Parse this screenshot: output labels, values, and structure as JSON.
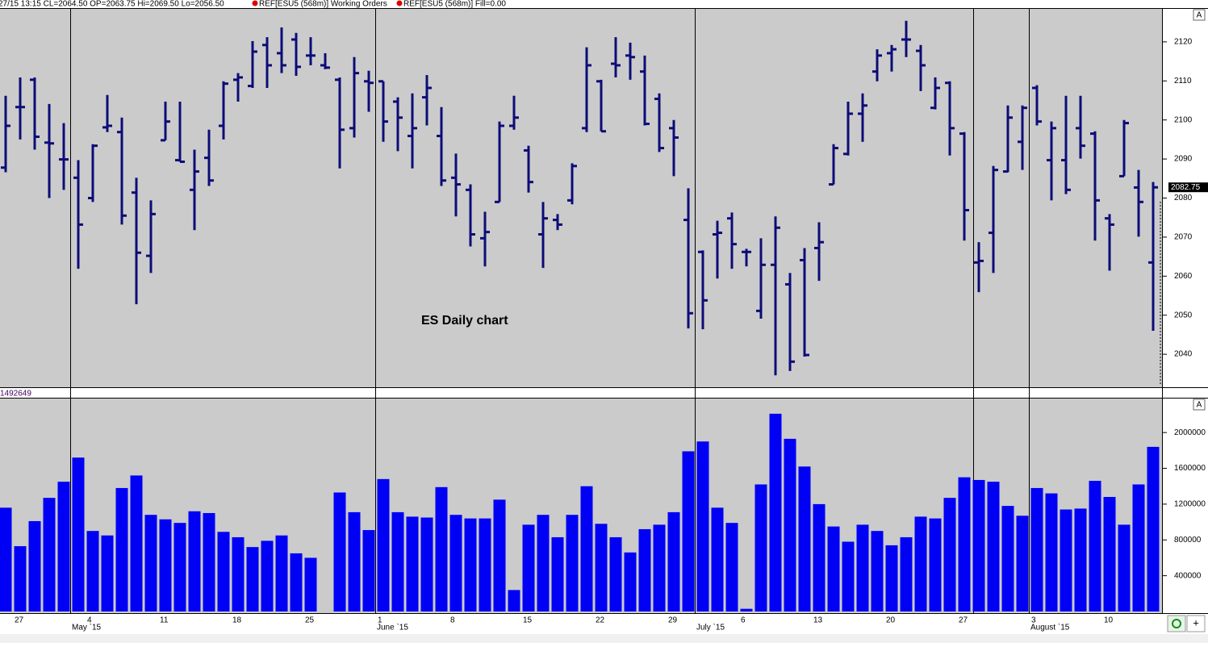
{
  "header": {
    "status": "27/15 13:15 CL=2064.50 OP=2063.75 Hi=2069.50 Lo=2056.50",
    "order_1": "REF[ESU5 (568m)] Working Orders",
    "order_2": "REF[ESU5 (568m)] Fill=0.00"
  },
  "controls": {
    "autoscale": "A",
    "zoom": "+"
  },
  "chart_data": [
    {
      "type": "ohlc",
      "annotation": "ES Daily chart",
      "color": "#0c0c78",
      "last_price": 2082.75,
      "categories": [
        null,
        "27",
        null,
        null,
        null,
        null,
        "4",
        null,
        null,
        null,
        null,
        "11",
        null,
        null,
        null,
        null,
        "18",
        null,
        null,
        null,
        null,
        "25",
        null,
        null,
        null,
        null,
        "1",
        null,
        null,
        null,
        null,
        "8",
        null,
        null,
        null,
        null,
        "15",
        null,
        null,
        null,
        null,
        "22",
        null,
        null,
        null,
        null,
        "29",
        null,
        null,
        null,
        null,
        "6",
        null,
        null,
        null,
        null,
        "13",
        null,
        null,
        null,
        null,
        "20",
        null,
        null,
        null,
        null,
        "27",
        null,
        null,
        null,
        null,
        "3",
        null,
        null,
        null,
        null,
        "10",
        null,
        null,
        null
      ],
      "month_labels": [
        null,
        null,
        null,
        null,
        null,
        "May `15",
        null,
        null,
        null,
        null,
        null,
        null,
        null,
        null,
        null,
        null,
        null,
        null,
        null,
        null,
        null,
        null,
        null,
        null,
        null,
        null,
        "June `15",
        null,
        null,
        null,
        null,
        null,
        null,
        null,
        null,
        null,
        null,
        null,
        null,
        null,
        null,
        null,
        null,
        null,
        null,
        null,
        null,
        null,
        "July `15",
        null,
        null,
        null,
        null,
        null,
        null,
        null,
        null,
        null,
        null,
        null,
        null,
        null,
        null,
        null,
        null,
        null,
        null,
        null,
        null,
        null,
        null,
        "August `15",
        null,
        null,
        null,
        null,
        null,
        null,
        null,
        null
      ],
      "open": [
        2087.8,
        2103.3,
        2110.3,
        2094.2,
        2089.9,
        2085.2,
        2080,
        2098.1,
        2096.9,
        2081.4,
        2065.2,
        2094.8,
        2089.7,
        2082.1,
        2090.3,
        2098.5,
        2110.3,
        2108.7,
        2119.2,
        2117.1,
        2120.6,
        2116.5,
        2114,
        2110.3,
        2097.9,
        2109.9,
        2109.9,
        2104.7,
        2095.9,
        2105.8,
        2095.9,
        2085.2,
        2082.1,
        2069.7,
        2079,
        2098.5,
        2092.2,
        2070.7,
        2074.4,
        2079.4,
        2097.9,
        2109.9,
        2114.4,
        2116.5,
        2112.4,
        2105.4,
        2097.9,
        2074.4,
        2066.2,
        2070.7,
        2074.8,
        2066.2,
        2051.1,
        2062.9,
        2057.9,
        2064.1,
        2067.2,
        2083.5,
        2091.3,
        2101.6,
        2112.4,
        2117.1,
        2120.6,
        2117.7,
        2103.1,
        2109.5,
        2096.5,
        2063.5,
        2071.1,
        2086.8,
        2094.4,
        2108.2,
        2089.7,
        2089.7,
        2097.9,
        2096.5,
        2074.8,
        2085.6,
        2082.7,
        2063.5
      ],
      "high": [
        2106.2,
        2110.9,
        2110.9,
        2104.1,
        2099.2,
        2089.7,
        2093.8,
        2106.4,
        2100.6,
        2085.2,
        2079.4,
        2104.7,
        2104.7,
        2092.4,
        2097.5,
        2109.9,
        2112,
        2120.2,
        2121.2,
        2123.7,
        2122.3,
        2121.2,
        2117.1,
        2110.9,
        2116.1,
        2112.6,
        2109.9,
        2105.8,
        2106.8,
        2111.5,
        2103.3,
        2091.4,
        2083.5,
        2076.5,
        2099.6,
        2106.2,
        2093.4,
        2079,
        2075.9,
        2088.9,
        2118.6,
        2110.3,
        2121.2,
        2119.8,
        2116.5,
        2106.8,
        2100,
        2082.5,
        2066.6,
        2074.2,
        2076.3,
        2067,
        2069.7,
        2075.3,
        2060.8,
        2067.2,
        2073.8,
        2093.8,
        2104.7,
        2106.8,
        2118.1,
        2119.2,
        2125.4,
        2119.2,
        2110.9,
        2109.9,
        2096.9,
        2068.7,
        2088.2,
        2103.7,
        2103.7,
        2108.9,
        2099.6,
        2106.2,
        2106.2,
        2097.1,
        2075.9,
        2100,
        2087.2,
        2084.1
      ],
      "low": [
        2086.6,
        2095,
        2092.4,
        2080,
        2082.1,
        2061.9,
        2079,
        2096.9,
        2073.2,
        2052.8,
        2060.8,
        2094.8,
        2089.3,
        2071.8,
        2083.1,
        2095,
        2104.7,
        2108.2,
        2108.2,
        2112,
        2111.3,
        2114,
        2113,
        2087.6,
        2095.5,
        2102.1,
        2094.4,
        2092,
        2087.6,
        2098.6,
        2083.1,
        2075.3,
        2067.6,
        2062.5,
        2079,
        2097.5,
        2081.4,
        2062.1,
        2071.8,
        2078.4,
        2096.9,
        2097.1,
        2110.9,
        2110.3,
        2098.6,
        2091.8,
        2085.6,
        2046.6,
        2046.4,
        2059.4,
        2061.9,
        2062.5,
        2049.1,
        2034.6,
        2035.7,
        2039.4,
        2058.8,
        2083.5,
        2090.9,
        2094.4,
        2109.9,
        2112.4,
        2116.1,
        2107.4,
        2102.7,
        2090.9,
        2069.1,
        2055.9,
        2060.8,
        2086.6,
        2087.2,
        2098.6,
        2079.4,
        2081,
        2090.1,
        2069.1,
        2061.4,
        2085.6,
        2070.1,
        2046
      ],
      "close": [
        2098.5,
        2103.3,
        2095.7,
        2094,
        2089.9,
        2073.2,
        2093.4,
        2098.5,
        2075.5,
        2066,
        2075.9,
        2099.6,
        2089.3,
        2086.8,
        2084.5,
        2109.3,
        2110.9,
        2117.5,
        2114,
        2114,
        2113.6,
        2116.5,
        2113.4,
        2097.5,
        2112,
        2109.5,
        2099.6,
        2100.6,
        2097.9,
        2108.2,
        2084.5,
        2083.5,
        2070.7,
        2071.3,
        2098.5,
        2100.6,
        2084.1,
        2074.8,
        2073.2,
        2088.2,
        2114,
        2097.1,
        2114,
        2116.1,
        2099,
        2092.8,
        2095.5,
        2050.5,
        2053.8,
        2071.1,
        2068.2,
        2066.2,
        2062.9,
        2072.4,
        2038.1,
        2039.8,
        2068.7,
        2092.8,
        2101.6,
        2103.7,
        2116.5,
        2118.1,
        2120.6,
        2114,
        2108.2,
        2097.9,
        2076.9,
        2063.9,
        2087.2,
        2100.6,
        2103.1,
        2099.6,
        2097.9,
        2082.1,
        2093.4,
        2079.4,
        2073.2,
        2099.2,
        2079,
        2082.75
      ],
      "ylim": [
        2031.55,
        2128.45
      ],
      "yticks": [
        2040,
        2050,
        2060,
        2070,
        2080,
        2090,
        2100,
        2110,
        2120
      ]
    },
    {
      "type": "bar",
      "title": "1492649",
      "color": "#0000f5",
      "values": [
        1160000,
        730000,
        1010000,
        1270000,
        1450000,
        1720000,
        900000,
        850000,
        1380000,
        1520000,
        1080000,
        1030000,
        990000,
        1120000,
        1100000,
        890000,
        830000,
        720000,
        790000,
        850000,
        650000,
        600000,
        null,
        1330000,
        1110000,
        910000,
        1480000,
        1110000,
        1060000,
        1050000,
        1390000,
        1080000,
        1040000,
        1040000,
        1250000,
        240000,
        970000,
        1080000,
        830000,
        1080000,
        1400000,
        980000,
        830000,
        660000,
        920000,
        970000,
        1110000,
        1790000,
        1900000,
        1160000,
        990000,
        30000,
        1420000,
        2210000,
        1930000,
        1620000,
        1200000,
        950000,
        780000,
        970000,
        900000,
        740000,
        830000,
        1060000,
        1040000,
        1270000,
        1500000,
        1470000,
        1450000,
        1180000,
        1070000,
        1380000,
        1320000,
        1140000,
        1150000,
        1460000,
        1280000,
        970000,
        1420000,
        1840000
      ],
      "ylim": [
        0,
        2380000
      ],
      "yticks": [
        400000,
        800000,
        1200000,
        1600000,
        2000000
      ]
    }
  ]
}
